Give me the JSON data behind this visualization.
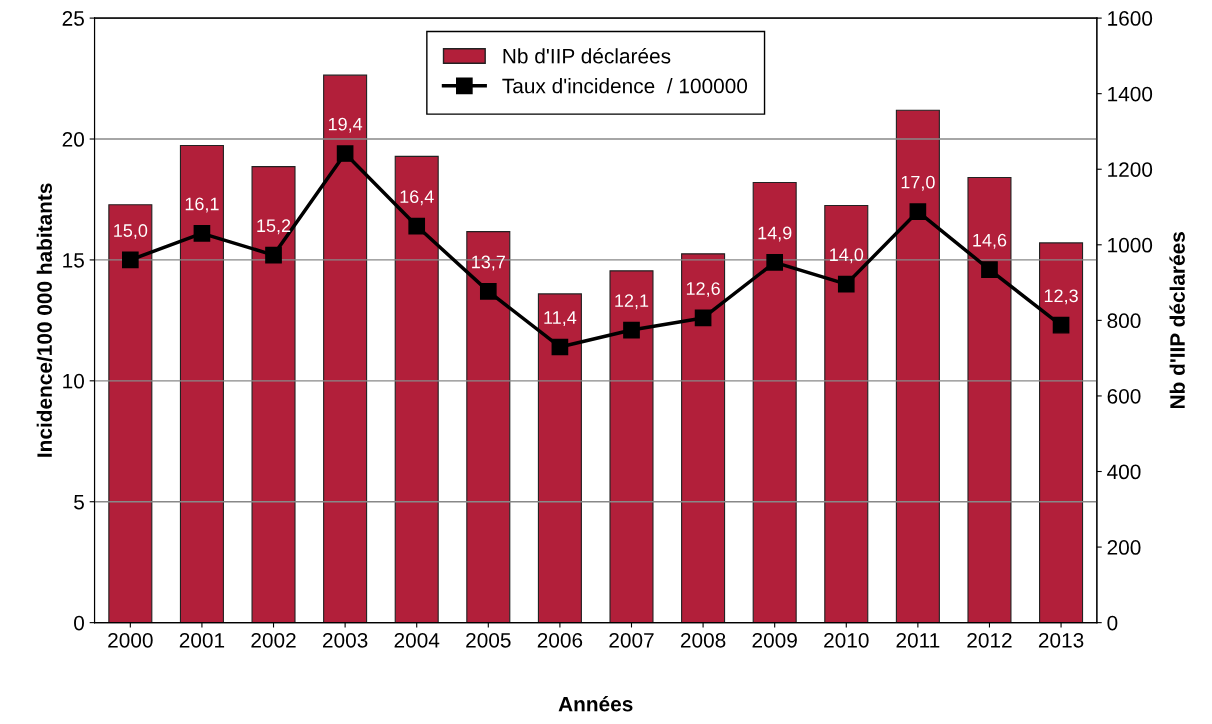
{
  "chart_data": {
    "type": "bar",
    "xlabel": "Années",
    "ylabel": "Incidence/100 000 habitants",
    "y2label": "Nb d'IIP déclarées",
    "categories": [
      "2000",
      "2001",
      "2002",
      "2003",
      "2004",
      "2005",
      "2006",
      "2007",
      "2008",
      "2009",
      "2010",
      "2011",
      "2012",
      "2013"
    ],
    "series": [
      {
        "name": "Nb d'IIP déclarées",
        "axis": "y2",
        "color": "#b21f3a",
        "values": [
          1106,
          1263,
          1207,
          1449,
          1234,
          1035,
          870,
          931,
          976,
          1165,
          1104,
          1356,
          1178,
          1005
        ]
      },
      {
        "name": "Taux d'incidence  / 100000",
        "type": "line",
        "color": "#000000",
        "marker": "square",
        "line_style": "solid",
        "values": [
          15.0,
          16.1,
          15.2,
          19.4,
          16.4,
          13.7,
          11.4,
          12.1,
          12.6,
          14.9,
          14.0,
          17.0,
          14.6,
          12.3
        ],
        "value_labels": [
          "15,0",
          "16,1",
          "15,2",
          "19,4",
          "16,4",
          "13,7",
          "11,4",
          "12,1",
          "12,6",
          "14,9",
          "14,0",
          "17,0",
          "14,6",
          "12,3"
        ]
      }
    ],
    "ylim": [
      0,
      25
    ],
    "yticks": [
      0,
      5,
      10,
      15,
      20,
      25
    ],
    "y2lim": [
      0,
      1600
    ],
    "y2ticks": [
      0,
      200,
      400,
      600,
      800,
      1000,
      1200,
      1400,
      1600
    ],
    "grid": "y",
    "legend": "top"
  }
}
